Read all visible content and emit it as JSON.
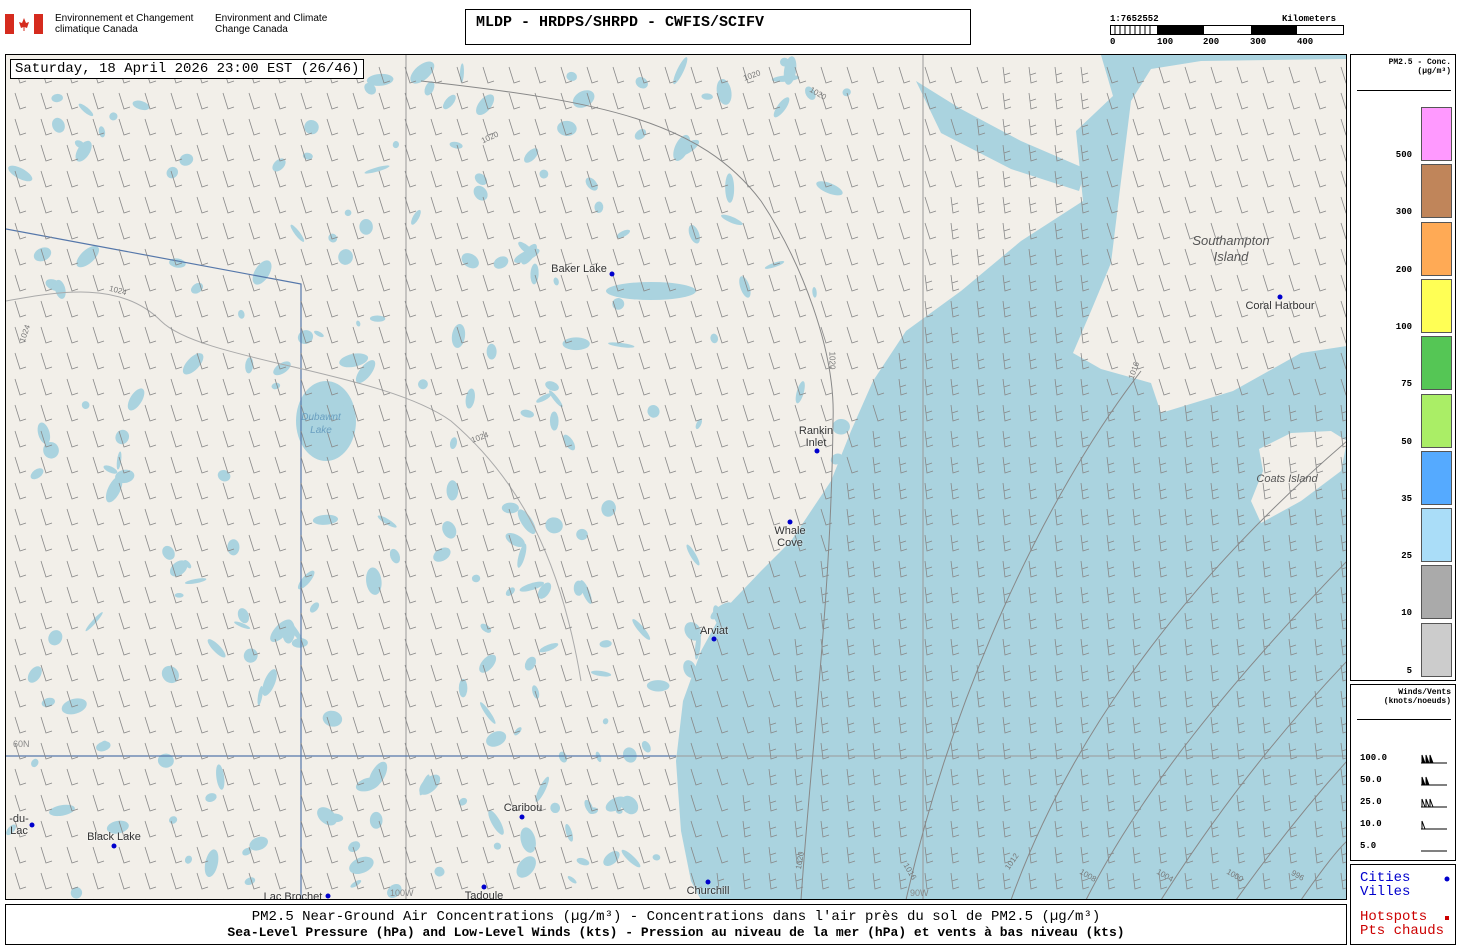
{
  "header": {
    "agency_fr": "Environnement et Changement climatique Canada",
    "agency_en": "Environment and Climate Change Canada",
    "title": "MLDP - HRDPS/SHRPD - CWFIS/SCIFV",
    "scale": "1:7652552",
    "scale_unit": "Kilometers",
    "scale_ticks": [
      "0",
      "100",
      "200",
      "300",
      "400"
    ]
  },
  "map": {
    "timestamp": "Saturday, 18 April 2026 23:00 EST (26/46)",
    "places": [
      "Baker Lake",
      "Rankin Inlet",
      "Whale Cove",
      "Arviat",
      "Caribou",
      "Black Lake",
      "Churchill",
      "Tadoule",
      "Lac Brochet",
      "Coral Harbour",
      "-du-Lac"
    ],
    "features": [
      "Southampton Island",
      "Coats Island",
      "Dubawnt Lake"
    ],
    "isobar_labels": [
      "1020",
      "1020",
      "1020",
      "1020",
      "1024",
      "1024",
      "1024",
      "1016",
      "1016",
      "1012",
      "1008",
      "1004",
      "1000",
      "996",
      "1020"
    ],
    "grid_labels": [
      "60N",
      "100W",
      "90W"
    ]
  },
  "pm_legend": {
    "title": "PM2.5 - Conc. (µg/m³)",
    "levels": [
      {
        "value": 500,
        "color": "#ff99ff"
      },
      {
        "value": 300,
        "color": "#c0855a"
      },
      {
        "value": 200,
        "color": "#ffaa55"
      },
      {
        "value": 100,
        "color": "#ffff55"
      },
      {
        "value": 75,
        "color": "#55c655"
      },
      {
        "value": 50,
        "color": "#aaee66"
      },
      {
        "value": 35,
        "color": "#55aaff"
      },
      {
        "value": 25,
        "color": "#aaddf8"
      },
      {
        "value": 10,
        "color": "#aaaaaa"
      },
      {
        "value": 5,
        "color": "#cccccc"
      }
    ]
  },
  "wind_legend": {
    "title": "Winds/Vents (knots/noeuds)",
    "speeds": [
      "100.0",
      "50.0",
      "25.0",
      "10.0",
      "5.0"
    ]
  },
  "point_legend": {
    "cities": "Cities",
    "villes": "Villes",
    "hotspots": "Hotspots",
    "pts_chauds": "Pts chauds"
  },
  "footer": {
    "line1": "PM2.5 Near-Ground Air Concentrations (µg/m³) - Concentrations dans l'air près du sol de PM2.5 (µg/m³)",
    "line2": "Sea-Level Pressure (hPa) and Low-Level Winds (kts) - Pression au niveau de la mer (hPa) et vents à bas niveau (kts)"
  }
}
